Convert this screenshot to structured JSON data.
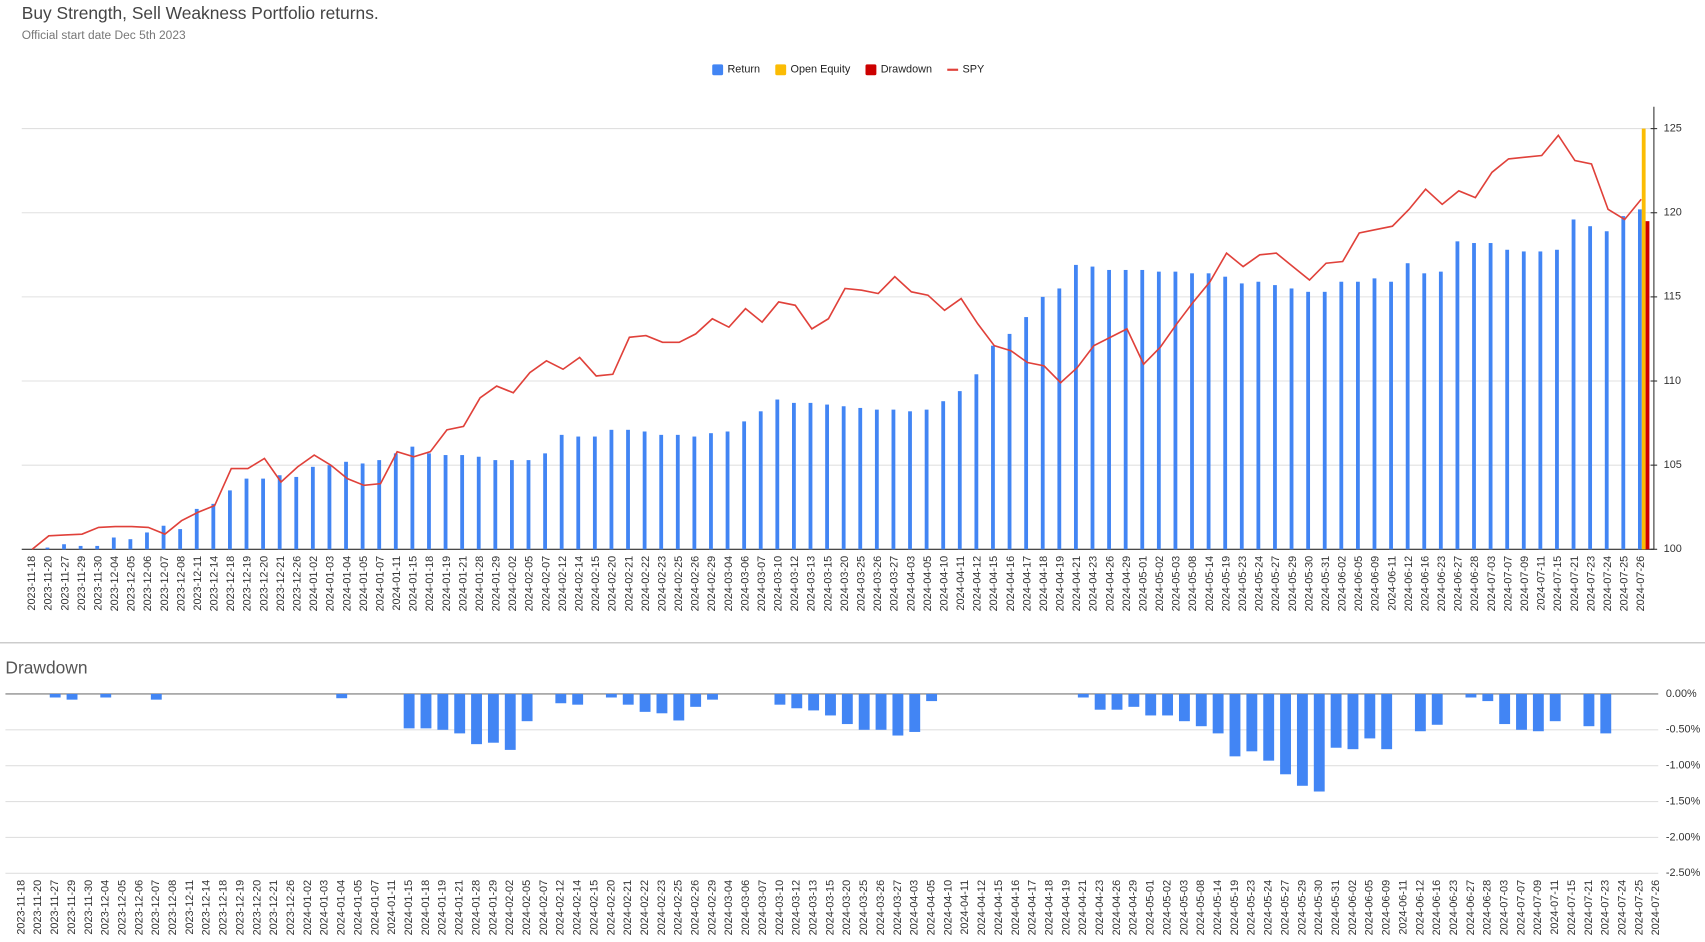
{
  "chart_data": [
    {
      "type": "combo",
      "title": "Buy Strength, Sell Weakness Portfolio returns.",
      "subtitle": "Official start date Dec 5th 2023",
      "categories": [
        "2023-11-18",
        "2023-11-20",
        "2023-11-27",
        "2023-11-29",
        "2023-11-30",
        "2023-12-04",
        "2023-12-05",
        "2023-12-06",
        "2023-12-07",
        "2023-12-08",
        "2023-12-11",
        "2023-12-14",
        "2023-12-18",
        "2023-12-19",
        "2023-12-20",
        "2023-12-21",
        "2023-12-26",
        "2024-01-02",
        "2024-01-03",
        "2024-01-04",
        "2024-01-05",
        "2024-01-07",
        "2024-01-11",
        "2024-01-15",
        "2024-01-18",
        "2024-01-19",
        "2024-01-21",
        "2024-01-28",
        "2024-01-29",
        "2024-02-02",
        "2024-02-05",
        "2024-02-07",
        "2024-02-12",
        "2024-02-14",
        "2024-02-15",
        "2024-02-20",
        "2024-02-21",
        "2024-02-22",
        "2024-02-23",
        "2024-02-25",
        "2024-02-26",
        "2024-02-29",
        "2024-03-04",
        "2024-03-06",
        "2024-03-07",
        "2024-03-10",
        "2024-03-12",
        "2024-03-13",
        "2024-03-15",
        "2024-03-20",
        "2024-03-25",
        "2024-03-26",
        "2024-03-27",
        "2024-04-03",
        "2024-04-05",
        "2024-04-10",
        "2024-04-11",
        "2024-04-12",
        "2024-04-15",
        "2024-04-16",
        "2024-04-17",
        "2024-04-18",
        "2024-04-19",
        "2024-04-21",
        "2024-04-23",
        "2024-04-26",
        "2024-04-29",
        "2024-05-01",
        "2024-05-02",
        "2024-05-03",
        "2024-05-08",
        "2024-05-14",
        "2024-05-19",
        "2024-05-23",
        "2024-05-24",
        "2024-05-27",
        "2024-05-29",
        "2024-05-30",
        "2024-05-31",
        "2024-06-02",
        "2024-06-05",
        "2024-06-09",
        "2024-06-11",
        "2024-06-12",
        "2024-06-16",
        "2024-06-23",
        "2024-06-27",
        "2024-06-28",
        "2024-07-03",
        "2024-07-07",
        "2024-07-09",
        "2024-07-11",
        "2024-07-15",
        "2024-07-21",
        "2024-07-23",
        "2024-07-24",
        "2024-07-25",
        "2024-07-26"
      ],
      "series": [
        {
          "name": "Return",
          "type": "bar",
          "color": "#4285f4",
          "values": [
            100.0,
            100.1,
            100.3,
            100.2,
            100.2,
            100.7,
            100.6,
            101.0,
            101.4,
            101.2,
            102.4,
            102.7,
            103.5,
            104.2,
            104.2,
            104.4,
            104.3,
            104.9,
            105.0,
            105.2,
            105.1,
            105.3,
            105.7,
            106.1,
            105.7,
            105.6,
            105.6,
            105.5,
            105.3,
            105.3,
            105.3,
            105.7,
            106.8,
            106.7,
            106.7,
            107.1,
            107.1,
            107.0,
            106.8,
            106.8,
            106.7,
            106.9,
            107.0,
            107.6,
            108.2,
            108.9,
            108.7,
            108.7,
            108.6,
            108.5,
            108.4,
            108.3,
            108.3,
            108.2,
            108.3,
            108.8,
            109.4,
            110.4,
            112.1,
            112.8,
            113.8,
            115.0,
            115.5,
            116.9,
            116.8,
            116.6,
            116.6,
            116.6,
            116.5,
            116.5,
            116.4,
            116.4,
            116.2,
            115.8,
            115.9,
            115.7,
            115.5,
            115.3,
            115.3,
            115.9,
            115.9,
            116.1,
            115.9,
            117.0,
            116.4,
            116.5,
            118.3,
            118.2,
            118.2,
            117.8,
            117.7,
            117.7,
            117.8,
            119.6,
            119.2,
            118.9,
            119.8,
            120.2
          ]
        },
        {
          "name": "Open Equity",
          "type": "bar",
          "color": "#fbbc04",
          "values": [
            null,
            null,
            null,
            null,
            null,
            null,
            null,
            null,
            null,
            null,
            null,
            null,
            null,
            null,
            null,
            null,
            null,
            null,
            null,
            null,
            null,
            null,
            null,
            null,
            null,
            null,
            null,
            null,
            null,
            null,
            null,
            null,
            null,
            null,
            null,
            null,
            null,
            null,
            null,
            null,
            null,
            null,
            null,
            null,
            null,
            null,
            null,
            null,
            null,
            null,
            null,
            null,
            null,
            null,
            null,
            null,
            null,
            null,
            null,
            null,
            null,
            null,
            null,
            null,
            null,
            null,
            null,
            null,
            null,
            null,
            null,
            null,
            null,
            null,
            null,
            null,
            null,
            null,
            null,
            null,
            null,
            null,
            null,
            null,
            null,
            null,
            null,
            null,
            null,
            null,
            null,
            null,
            null,
            null,
            null,
            null,
            null,
            125.0
          ]
        },
        {
          "name": "Drawdown",
          "type": "bar",
          "color": "#cc0000",
          "values": [
            null,
            null,
            null,
            null,
            null,
            null,
            null,
            null,
            null,
            null,
            null,
            null,
            null,
            null,
            null,
            null,
            null,
            null,
            null,
            null,
            null,
            null,
            null,
            null,
            null,
            null,
            null,
            null,
            null,
            null,
            null,
            null,
            null,
            null,
            null,
            null,
            null,
            null,
            null,
            null,
            null,
            null,
            null,
            null,
            null,
            null,
            null,
            null,
            null,
            null,
            null,
            null,
            null,
            null,
            null,
            null,
            null,
            null,
            null,
            null,
            null,
            null,
            null,
            null,
            null,
            null,
            null,
            null,
            null,
            null,
            null,
            null,
            null,
            null,
            null,
            null,
            null,
            null,
            null,
            null,
            null,
            null,
            null,
            null,
            null,
            null,
            null,
            null,
            null,
            null,
            null,
            null,
            null,
            null,
            null,
            null,
            null,
            119.5
          ]
        },
        {
          "name": "SPY",
          "type": "line",
          "color": "#e0413a",
          "values": [
            100.0,
            100.8,
            100.85,
            100.9,
            101.3,
            101.35,
            101.35,
            101.3,
            100.9,
            101.7,
            102.2,
            102.6,
            104.8,
            104.8,
            105.4,
            104.0,
            104.9,
            105.6,
            105.0,
            104.2,
            103.8,
            103.9,
            105.8,
            105.5,
            105.8,
            107.1,
            107.3,
            109.0,
            109.7,
            109.3,
            110.5,
            111.2,
            110.7,
            111.4,
            110.3,
            110.4,
            112.6,
            112.7,
            112.3,
            112.3,
            112.8,
            113.7,
            113.2,
            114.3,
            113.5,
            114.7,
            114.5,
            113.1,
            113.7,
            115.5,
            115.4,
            115.2,
            116.2,
            115.3,
            115.1,
            114.2,
            114.9,
            113.4,
            112.1,
            111.8,
            111.1,
            110.9,
            109.9,
            110.8,
            112.1,
            112.6,
            113.1,
            111.0,
            112.0,
            113.4,
            114.7,
            115.9,
            117.6,
            116.8,
            117.5,
            117.6,
            116.8,
            116.0,
            117.0,
            117.1,
            118.8,
            119.0,
            119.2,
            120.2,
            121.4,
            120.5,
            121.3,
            120.9,
            122.4,
            123.2,
            123.3,
            123.4,
            124.6,
            123.1,
            122.9,
            120.2,
            119.6,
            120.8
          ]
        }
      ],
      "ylim": [
        100,
        126.3
      ],
      "yticks": [
        100,
        105,
        110,
        115,
        120,
        125
      ],
      "grid": true,
      "legend": "top"
    },
    {
      "type": "bar",
      "title": "Drawdown",
      "categories": [
        "2023-11-18",
        "2023-11-20",
        "2023-11-27",
        "2023-11-29",
        "2023-11-30",
        "2023-12-04",
        "2023-12-05",
        "2023-12-06",
        "2023-12-07",
        "2023-12-08",
        "2023-12-11",
        "2023-12-14",
        "2023-12-18",
        "2023-12-19",
        "2023-12-20",
        "2023-12-21",
        "2023-12-26",
        "2024-01-02",
        "2024-01-03",
        "2024-01-04",
        "2024-01-05",
        "2024-01-07",
        "2024-01-11",
        "2024-01-15",
        "2024-01-18",
        "2024-01-19",
        "2024-01-21",
        "2024-01-28",
        "2024-01-29",
        "2024-02-02",
        "2024-02-05",
        "2024-02-07",
        "2024-02-12",
        "2024-02-14",
        "2024-02-15",
        "2024-02-20",
        "2024-02-21",
        "2024-02-22",
        "2024-02-23",
        "2024-02-25",
        "2024-02-26",
        "2024-02-29",
        "2024-03-04",
        "2024-03-06",
        "2024-03-07",
        "2024-03-10",
        "2024-03-12",
        "2024-03-13",
        "2024-03-15",
        "2024-03-20",
        "2024-03-25",
        "2024-03-26",
        "2024-03-27",
        "2024-04-03",
        "2024-04-05",
        "2024-04-10",
        "2024-04-11",
        "2024-04-12",
        "2024-04-15",
        "2024-04-16",
        "2024-04-17",
        "2024-04-18",
        "2024-04-19",
        "2024-04-21",
        "2024-04-23",
        "2024-04-26",
        "2024-04-29",
        "2024-05-01",
        "2024-05-02",
        "2024-05-03",
        "2024-05-08",
        "2024-05-14",
        "2024-05-19",
        "2024-05-23",
        "2024-05-24",
        "2024-05-27",
        "2024-05-29",
        "2024-05-30",
        "2024-05-31",
        "2024-06-02",
        "2024-06-05",
        "2024-06-09",
        "2024-06-11",
        "2024-06-12",
        "2024-06-16",
        "2024-06-23",
        "2024-06-27",
        "2024-06-28",
        "2024-07-03",
        "2024-07-07",
        "2024-07-09",
        "2024-07-11",
        "2024-07-15",
        "2024-07-21",
        "2024-07-23",
        "2024-07-24",
        "2024-07-25",
        "2024-07-26"
      ],
      "values": [
        0,
        0,
        -0.05,
        -0.08,
        0,
        -0.05,
        0,
        0,
        -0.08,
        0,
        0,
        0,
        0,
        0,
        0,
        0,
        0,
        0,
        0,
        -0.06,
        0,
        0,
        0,
        -0.48,
        -0.48,
        -0.5,
        -0.55,
        -0.7,
        -0.68,
        -0.78,
        -0.38,
        0,
        -0.13,
        -0.15,
        0,
        -0.05,
        -0.15,
        -0.25,
        -0.27,
        -0.37,
        -0.18,
        -0.08,
        0,
        0,
        0,
        -0.15,
        -0.2,
        -0.23,
        -0.3,
        -0.42,
        -0.5,
        -0.5,
        -0.58,
        -0.53,
        -0.1,
        0,
        0,
        0,
        0,
        0,
        0,
        0,
        0,
        -0.05,
        -0.22,
        -0.22,
        -0.18,
        -0.3,
        -0.3,
        -0.38,
        -0.45,
        -0.55,
        -0.87,
        -0.8,
        -0.93,
        -1.12,
        -1.28,
        -1.36,
        -0.75,
        -0.77,
        -0.62,
        -0.77,
        0,
        -0.52,
        -0.43,
        0,
        -0.05,
        -0.1,
        -0.42,
        -0.5,
        -0.52,
        -0.38,
        0,
        -0.45,
        -0.55,
        0,
        0,
        0
      ],
      "color": "#4285f4",
      "ylim": [
        -2.5,
        0
      ],
      "yticks": [
        {
          "value": 0,
          "label": "0.00%"
        },
        {
          "value": -0.5,
          "label": "-0.50%"
        },
        {
          "value": -1,
          "label": "-1.00%"
        },
        {
          "value": -1.5,
          "label": "-1.50%"
        },
        {
          "value": -2,
          "label": "-2.00%"
        },
        {
          "value": -2.5,
          "label": "-2.50%"
        }
      ],
      "grid": true
    }
  ]
}
